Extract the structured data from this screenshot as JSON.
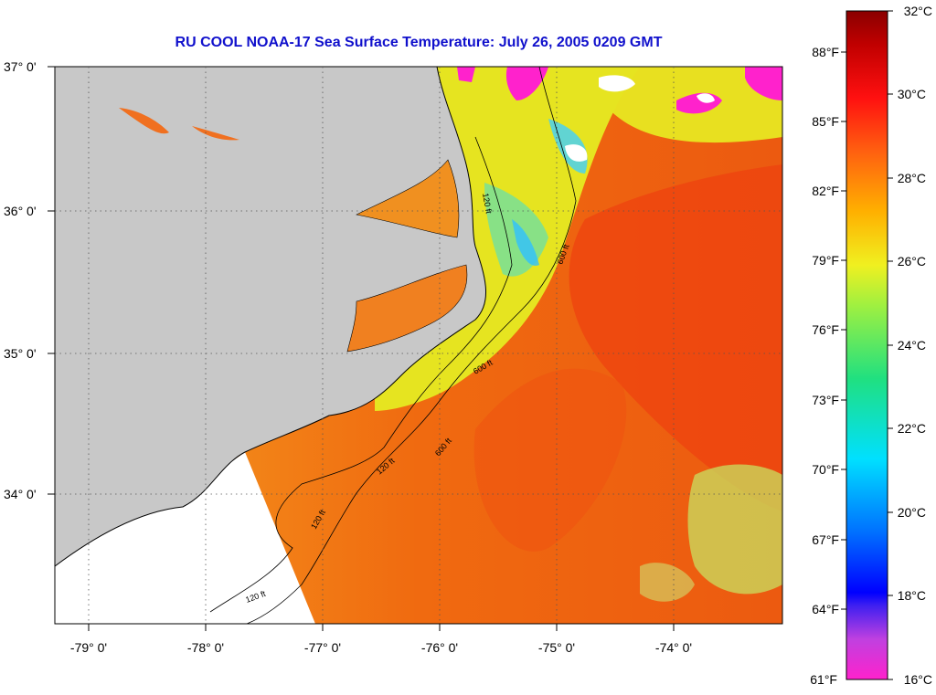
{
  "title": "RU COOL  NOAA-17  Sea Surface Temperature:  July 26, 2005 0209 GMT",
  "axes": {
    "lat_labels": [
      "37° 0'",
      "36° 0'",
      "35° 0'",
      "34° 0'"
    ],
    "lon_labels": [
      "-79° 0'",
      "-78° 0'",
      "-77° 0'",
      "-76° 0'",
      "-75° 0'",
      "-74° 0'"
    ]
  },
  "colorbar": {
    "fahrenheit_labels": [
      "88°F",
      "85°F",
      "82°F",
      "79°F",
      "76°F",
      "73°F",
      "70°F",
      "67°F",
      "64°F",
      "61°F"
    ],
    "celsius_labels": [
      "32°C",
      "30°C",
      "28°C",
      "26°C",
      "24°C",
      "22°C",
      "20°C",
      "18°C",
      "16°C"
    ]
  },
  "contour_labels": [
    "120 ft",
    "600 ft",
    "120 ft",
    "600 ft",
    "120 ft",
    "600 ft",
    "120 ft"
  ],
  "colors": {
    "land": "#c8c8c8",
    "no_data": "#ffffff",
    "title": "#1010cc",
    "warm_sea": "#f06a10",
    "hot_sea": "#ee4010",
    "shelf": "#e8e020",
    "cold_cloud": "#ff22cc"
  }
}
